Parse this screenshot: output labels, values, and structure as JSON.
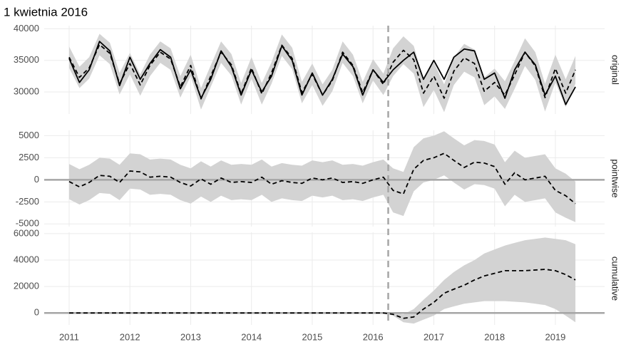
{
  "chart_data": {
    "type": "line",
    "title": "1 kwietnia 2016",
    "x": [
      2011,
      2011.17,
      2011.33,
      2011.5,
      2011.67,
      2011.83,
      2012,
      2012.17,
      2012.33,
      2012.5,
      2012.67,
      2012.83,
      2013,
      2013.17,
      2013.33,
      2013.5,
      2013.67,
      2013.83,
      2014,
      2014.17,
      2014.33,
      2014.5,
      2014.67,
      2014.83,
      2015,
      2015.17,
      2015.33,
      2015.5,
      2015.67,
      2015.83,
      2016,
      2016.17,
      2016.33,
      2016.5,
      2016.67,
      2016.83,
      2017,
      2017.17,
      2017.33,
      2017.5,
      2017.67,
      2017.83,
      2018,
      2018.17,
      2018.33,
      2018.5,
      2018.67,
      2018.83,
      2019,
      2019.17,
      2019.33
    ],
    "xlim": [
      2010.59,
      2019.81
    ],
    "xticks": [
      2011,
      2012,
      2013,
      2014,
      2015,
      2016,
      2017,
      2018,
      2019
    ],
    "intervention": 2016.25,
    "intervention_color": "#a6a6a6",
    "grid": true,
    "panels": [
      {
        "label": "original",
        "ylim": [
          26500,
          40500
        ],
        "yticks": [
          30000,
          35000,
          40000
        ],
        "band": {
          "color": "#d3d3d3",
          "lower": [
            33800,
            30600,
            32100,
            35800,
            34400,
            29600,
            32800,
            29400,
            32500,
            34600,
            33500,
            29100,
            32500,
            27200,
            30800,
            34600,
            32600,
            28000,
            32100,
            28000,
            31300,
            35700,
            33600,
            28200,
            31100,
            27800,
            30100,
            34600,
            32500,
            28200,
            31800,
            29500,
            32500,
            34400,
            32900,
            27600,
            30300,
            26800,
            31100,
            33200,
            32300,
            27900,
            29300,
            27300,
            30500,
            34100,
            31900,
            26900,
            31500,
            27600,
            31300
          ],
          "upper": [
            37200,
            34000,
            35500,
            39200,
            37800,
            33000,
            36200,
            32800,
            35900,
            38000,
            36900,
            32500,
            35900,
            30600,
            34200,
            38000,
            36000,
            31400,
            35500,
            31400,
            34700,
            39100,
            37000,
            31600,
            34500,
            31200,
            33500,
            38000,
            35900,
            31600,
            35200,
            32900,
            36900,
            38800,
            37300,
            32000,
            34700,
            31200,
            35500,
            37600,
            36700,
            32300,
            33700,
            31700,
            34900,
            38500,
            36300,
            31300,
            35900,
            32000,
            35700
          ]
        },
        "series": [
          {
            "color": "#000000",
            "dash": "solid",
            "values": [
              35300,
              31500,
              33500,
              38000,
              36500,
              31000,
              35500,
              32000,
              34500,
              36700,
              35500,
              30500,
              33500,
              29000,
              32000,
              36500,
              34000,
              29500,
              33500,
              30000,
              32500,
              37300,
              35000,
              29500,
              33000,
              29500,
              32000,
              36000,
              34000,
              29500,
              33500,
              31500,
              33500,
              35000,
              36300,
              32000,
              35000,
              32000,
              35500,
              36800,
              36500,
              32000,
              33000,
              29000,
              33500,
              36300,
              34300,
              29500,
              32500,
              28000,
              30800
            ]
          },
          {
            "color": "#000000",
            "dash": "dashed",
            "values": [
              35500,
              32300,
              33800,
              37500,
              36100,
              31300,
              34500,
              31100,
              34200,
              36300,
              35200,
              30800,
              34200,
              28900,
              32500,
              36300,
              34300,
              29700,
              33800,
              29700,
              33000,
              37400,
              35300,
              29900,
              32800,
              29500,
              31800,
              36300,
              34200,
              29900,
              33500,
              31200,
              34700,
              36600,
              35100,
              29800,
              32500,
              29000,
              33300,
              35400,
              34500,
              30100,
              31500,
              29500,
              32700,
              36300,
              34100,
              29100,
              33700,
              29800,
              33500
            ]
          }
        ]
      },
      {
        "label": "pointwise",
        "ylim": [
          -5300,
          5600
        ],
        "yticks": [
          -5000,
          -2500,
          0,
          2500,
          5000
        ],
        "reference_line": 0,
        "reference_color": "#a6a6a6",
        "band": {
          "color": "#d3d3d3",
          "lower": [
            -2200,
            -2800,
            -2300,
            -1500,
            -1600,
            -2300,
            -1000,
            -1100,
            -1700,
            -1600,
            -1700,
            -2300,
            -2700,
            -1900,
            -2500,
            -1800,
            -2300,
            -2200,
            -2300,
            -1700,
            -2500,
            -2100,
            -2300,
            -2400,
            -1800,
            -2000,
            -1800,
            -2300,
            -2200,
            -2400,
            -2000,
            -1700,
            -3700,
            -4100,
            -1300,
            -300,
            0,
            500,
            -300,
            -1100,
            -500,
            -600,
            -1000,
            -3000,
            -1700,
            -2500,
            -2300,
            -2100,
            -3700,
            -4300,
            -4800
          ],
          "upper": [
            1800,
            1200,
            1700,
            2500,
            2400,
            1700,
            3000,
            2900,
            2300,
            2400,
            2300,
            1700,
            1300,
            2100,
            1500,
            2200,
            1700,
            1800,
            1700,
            2300,
            1500,
            1900,
            1700,
            1600,
            2200,
            2000,
            2200,
            1700,
            1800,
            1600,
            2000,
            2300,
            1300,
            900,
            3700,
            4700,
            5000,
            5500,
            4700,
            3900,
            4500,
            4400,
            4000,
            2000,
            3300,
            2500,
            2700,
            2900,
            1300,
            700,
            -200
          ]
        },
        "series": [
          {
            "color": "#000000",
            "dash": "dashed",
            "values": [
              -200,
              -800,
              -300,
              500,
              400,
              -300,
              1000,
              900,
              300,
              400,
              300,
              -300,
              -700,
              100,
              -500,
              200,
              -300,
              -200,
              -300,
              300,
              -500,
              -100,
              -300,
              -400,
              200,
              0,
              200,
              -300,
              -200,
              -400,
              0,
              300,
              -1200,
              -1600,
              1200,
              2200,
              2500,
              3000,
              2200,
              1400,
              2000,
              1900,
              1500,
              -500,
              800,
              0,
              200,
              400,
              -1200,
              -1800,
              -2700
            ]
          }
        ]
      },
      {
        "label": "cumulative",
        "ylim": [
          -9000,
          61000
        ],
        "yticks": [
          0,
          20000,
          40000,
          60000
        ],
        "reference_line": 0,
        "reference_color": "#a6a6a6",
        "band": {
          "color": "#d3d3d3",
          "lower": [
            0,
            0,
            0,
            0,
            0,
            0,
            0,
            0,
            0,
            0,
            0,
            0,
            0,
            0,
            0,
            0,
            0,
            0,
            0,
            0,
            0,
            0,
            0,
            0,
            0,
            0,
            0,
            0,
            0,
            0,
            0,
            0,
            -2000,
            -7000,
            -8000,
            -5000,
            -2000,
            3000,
            5000,
            7000,
            8000,
            9000,
            9000,
            9000,
            8500,
            8000,
            7000,
            6000,
            3000,
            -2000,
            -7000
          ],
          "upper": [
            0,
            0,
            0,
            0,
            0,
            0,
            0,
            0,
            0,
            0,
            0,
            0,
            0,
            0,
            0,
            0,
            0,
            0,
            0,
            0,
            0,
            0,
            0,
            0,
            0,
            0,
            0,
            0,
            0,
            0,
            0,
            0,
            0,
            -1000,
            3000,
            10000,
            17000,
            25000,
            31000,
            36000,
            40000,
            45000,
            48000,
            51000,
            53000,
            55000,
            56000,
            57000,
            56000,
            55000,
            52000
          ]
        },
        "series": [
          {
            "color": "#000000",
            "dash": "dashed",
            "values": [
              0,
              0,
              0,
              0,
              0,
              0,
              0,
              0,
              0,
              0,
              0,
              0,
              0,
              0,
              0,
              0,
              0,
              0,
              0,
              0,
              0,
              0,
              0,
              0,
              0,
              0,
              0,
              0,
              0,
              0,
              0,
              0,
              -1000,
              -4000,
              -3000,
              3000,
              8000,
              15000,
              18000,
              21000,
              25000,
              28000,
              30000,
              32000,
              32000,
              32000,
              32500,
              33000,
              32000,
              29000,
              25000
            ]
          }
        ]
      }
    ]
  }
}
